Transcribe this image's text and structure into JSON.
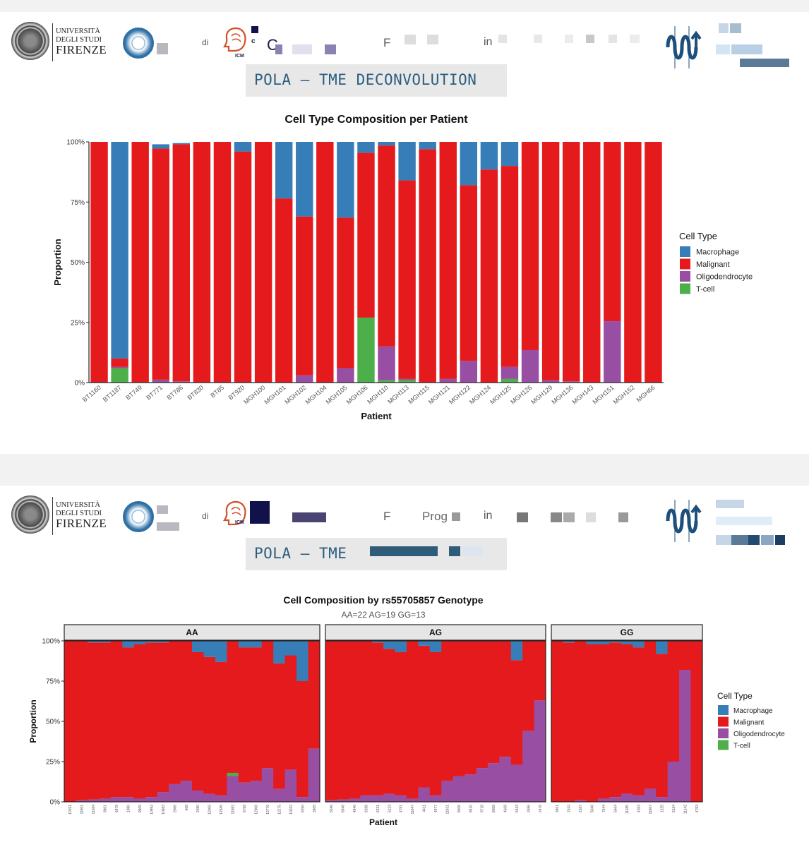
{
  "header": {
    "university": {
      "line1": "UNIVERSITÀ",
      "line2": "DEGLI STUDI",
      "line3": "FIRENZE"
    },
    "frag_di": "di",
    "frag_c": "C",
    "frag_f": "F",
    "frag_in": "in",
    "frag_prog": "Prog",
    "icm_label": "ICM"
  },
  "slide1": {
    "title": "POLA – TME DECONVOLUTION"
  },
  "slide2": {
    "title": "POLA – TME"
  },
  "colors": {
    "Macrophage": "#377EB8",
    "Malignant": "#E41A1C",
    "Oligodendrocyte": "#984EA3",
    "T-cell": "#4DAF4A"
  },
  "chart_data": [
    {
      "type": "bar",
      "stacked": true,
      "title": "Cell Type Composition per Patient",
      "xlabel": "Patient",
      "ylabel": "Proportion",
      "ylim": [
        0,
        1
      ],
      "yticks": [
        "0%",
        "25%",
        "50%",
        "75%",
        "100%"
      ],
      "legend_title": "Cell Type",
      "legend_position": "right",
      "categories": [
        "BT1160",
        "BT1187",
        "BT749",
        "BT771",
        "BT786",
        "BT830",
        "BT85",
        "BT920",
        "MGH100",
        "MGH101",
        "MGH102",
        "MGH104",
        "MGH105",
        "MGH106",
        "MGH110",
        "MGH113",
        "MGH115",
        "MGH121",
        "MGH122",
        "MGH124",
        "MGH125",
        "MGH126",
        "MGH129",
        "MGH136",
        "MGH143",
        "MGH151",
        "MGH152",
        "MGH66"
      ],
      "series": [
        {
          "name": "T-cell",
          "values": [
            0,
            0.06,
            0,
            0,
            0,
            0,
            0,
            0,
            0,
            0,
            0,
            0,
            0,
            0.27,
            0.01,
            0.01,
            0,
            0,
            0,
            0,
            0.015,
            0,
            0,
            0,
            0,
            0,
            0,
            0
          ]
        },
        {
          "name": "Oligodendrocyte",
          "values": [
            0,
            0.005,
            0,
            0.012,
            0.005,
            0,
            0,
            0,
            0,
            0,
            0.03,
            0,
            0.06,
            0,
            0.14,
            0.005,
            0,
            0.015,
            0.09,
            0,
            0.05,
            0.135,
            0.01,
            0.005,
            0,
            0.255,
            0,
            0
          ]
        },
        {
          "name": "Malignant",
          "values": [
            1,
            0.035,
            1,
            0.96,
            0.985,
            1,
            1,
            0.96,
            1,
            0.765,
            0.66,
            1,
            0.625,
            0.685,
            0.835,
            0.825,
            0.97,
            0.985,
            0.73,
            0.885,
            0.835,
            0.865,
            0.99,
            0.995,
            1,
            0.745,
            1,
            1
          ]
        },
        {
          "name": "Macrophage",
          "values": [
            0,
            0.9,
            0,
            0.018,
            0.005,
            0,
            0,
            0.04,
            0,
            0.235,
            0.31,
            0,
            0.315,
            0.045,
            0.015,
            0.16,
            0.03,
            0,
            0.18,
            0.115,
            0.1,
            0,
            0,
            0,
            0,
            0,
            0,
            0
          ]
        }
      ]
    },
    {
      "type": "bar",
      "stacked": true,
      "faceted": true,
      "title": "Cell Composition by rs55705857 Genotype",
      "subtitle": "AA=22  AG=19  GG=13",
      "xlabel": "Patient",
      "ylabel": "Proportion",
      "ylim": [
        0,
        1
      ],
      "yticks": [
        "0%",
        "25%",
        "50%",
        "75%",
        "100%"
      ],
      "legend_title": "Cell Type",
      "legend_position": "right",
      "facets": [
        {
          "label": "AA",
          "categories": [
            "10191",
            "11961",
            "11384",
            "9861",
            "6879",
            "1080",
            "9969",
            "10992",
            "10683",
            "2066",
            "668",
            "2480",
            "12000",
            "12545",
            "11982",
            "9799",
            "12006",
            "12776",
            "12275",
            "10032",
            "9150",
            "3965"
          ],
          "oligo": [
            0,
            0.01,
            0.015,
            0.02,
            0.03,
            0.03,
            0.02,
            0.03,
            0.06,
            0.11,
            0.13,
            0.07,
            0.05,
            0.04,
            0.16,
            0.12,
            0.13,
            0.21,
            0.08,
            0.2,
            0.03,
            0.33
          ],
          "tcell": [
            0,
            0,
            0,
            0,
            0,
            0,
            0,
            0,
            0,
            0,
            0,
            0,
            0,
            0,
            0.02,
            0,
            0,
            0,
            0,
            0,
            0,
            0
          ],
          "macro": [
            0,
            0,
            0.01,
            0.01,
            0,
            0.04,
            0.02,
            0.01,
            0.01,
            0,
            0,
            0.07,
            0.1,
            0.13,
            0,
            0.04,
            0.04,
            0,
            0.14,
            0.09,
            0.25,
            0
          ]
        },
        {
          "label": "AG",
          "categories": [
            "5246",
            "8346",
            "4840",
            "9198",
            "6231",
            "5123",
            "4791",
            "11647",
            "4411",
            "4977",
            "11831",
            "8606",
            "8610",
            "9718",
            "8059",
            "4669",
            "5443",
            "2686",
            "2476"
          ],
          "oligo": [
            0.01,
            0.015,
            0.02,
            0.04,
            0.04,
            0.05,
            0.04,
            0.02,
            0.09,
            0.04,
            0.13,
            0.16,
            0.17,
            0.21,
            0.24,
            0.28,
            0.23,
            0.44,
            0.63
          ],
          "tcell": [
            0,
            0,
            0,
            0,
            0,
            0,
            0,
            0,
            0,
            0,
            0,
            0,
            0,
            0,
            0,
            0,
            0,
            0,
            0
          ],
          "macro": [
            0,
            0,
            0,
            0,
            0.01,
            0.05,
            0.07,
            0,
            0.03,
            0.07,
            0,
            0,
            0,
            0,
            0,
            0,
            0.12,
            0,
            0
          ]
        },
        {
          "label": "GG",
          "categories": [
            "3861",
            "2343",
            "2187",
            "5046",
            "7644",
            "5664",
            "11185",
            "4263",
            "11867",
            "1225",
            "5134",
            "11142",
            "4793"
          ],
          "oligo": [
            0,
            0,
            0.01,
            0,
            0.02,
            0.03,
            0.05,
            0.04,
            0.08,
            0.03,
            0.25,
            0.82,
            0
          ],
          "tcell": [
            0,
            0,
            0,
            0,
            0,
            0,
            0,
            0,
            0,
            0,
            0,
            0,
            0
          ],
          "macro": [
            0,
            0.01,
            0,
            0.02,
            0.02,
            0.01,
            0.02,
            0.04,
            0,
            0.08,
            0,
            0,
            0
          ]
        }
      ]
    }
  ]
}
